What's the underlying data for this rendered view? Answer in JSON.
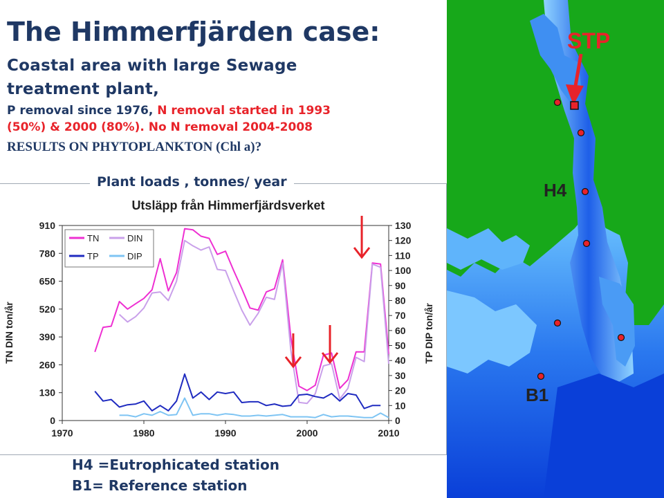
{
  "slide": {
    "title": "The Himmerfjärden case:",
    "subtitle_line1": "Coastal area with large Sewage",
    "subtitle_line2": "treatment plant,",
    "line3_a": "P removal since 1976, ",
    "line3_b": "N removal started in 1993",
    "line4": "(50%) & 2000 (80%).  No N removal 2004-2008",
    "results": "RESULTS ON PHYTOPLANKTON (Chl a)?",
    "loads_label": "Plant loads , tonnes/ year",
    "footer_h4": "H4 =Eutrophicated station",
    "footer_b1": "B1= Reference station"
  },
  "map": {
    "stp_label": "STP",
    "h4_label": "H4",
    "b1_label": "B1",
    "colors": {
      "land": "#17a81a",
      "water_deep": "#0a3fd8",
      "water_light": "#8fd3ff",
      "station": "#e8232a"
    }
  },
  "chart_data": {
    "type": "line",
    "title": "Utsläpp från Himmerfjärdsverket",
    "ylabel": "TN DIN  ton/år",
    "y2label": "TP DIP ton/år",
    "xlim": [
      1970,
      2010
    ],
    "ylim": [
      0,
      910
    ],
    "y2lim": [
      0,
      130
    ],
    "x_ticks": [
      1970,
      1980,
      1990,
      2000,
      2010
    ],
    "y_ticks": [
      0,
      130,
      260,
      390,
      520,
      650,
      780,
      910
    ],
    "y2_ticks": [
      0,
      10,
      20,
      30,
      40,
      50,
      60,
      70,
      80,
      90,
      100,
      110,
      120,
      130
    ],
    "legend_position": "top-left",
    "series": [
      {
        "name": "TN",
        "axis": "left",
        "color": "#ee2fd2",
        "width": 2,
        "points": [
          [
            1974,
            320
          ],
          [
            1975,
            435
          ],
          [
            1976,
            440
          ],
          [
            1977,
            555
          ],
          [
            1978,
            520
          ],
          [
            1979,
            545
          ],
          [
            1980,
            570
          ],
          [
            1981,
            610
          ],
          [
            1982,
            755
          ],
          [
            1983,
            605
          ],
          [
            1984,
            690
          ],
          [
            1985,
            895
          ],
          [
            1986,
            890
          ],
          [
            1987,
            860
          ],
          [
            1988,
            850
          ],
          [
            1989,
            775
          ],
          [
            1990,
            790
          ],
          [
            1991,
            700
          ],
          [
            1992,
            615
          ],
          [
            1993,
            525
          ],
          [
            1994,
            515
          ],
          [
            1995,
            600
          ],
          [
            1996,
            615
          ],
          [
            1997,
            750
          ],
          [
            1998,
            390
          ],
          [
            1999,
            160
          ],
          [
            2000,
            140
          ],
          [
            2001,
            165
          ],
          [
            2002,
            305
          ],
          [
            2003,
            315
          ],
          [
            2004,
            150
          ],
          [
            2005,
            190
          ],
          [
            2006,
            320
          ],
          [
            2007,
            320
          ],
          [
            2008,
            735
          ],
          [
            2009,
            730
          ],
          [
            2010,
            310
          ]
        ]
      },
      {
        "name": "DIN",
        "axis": "left",
        "color": "#c9a0ea",
        "width": 2,
        "points": [
          [
            1977,
            495
          ],
          [
            1978,
            460
          ],
          [
            1979,
            485
          ],
          [
            1980,
            525
          ],
          [
            1981,
            595
          ],
          [
            1982,
            600
          ],
          [
            1983,
            560
          ],
          [
            1984,
            650
          ],
          [
            1985,
            840
          ],
          [
            1986,
            815
          ],
          [
            1987,
            795
          ],
          [
            1988,
            810
          ],
          [
            1989,
            705
          ],
          [
            1990,
            700
          ],
          [
            1991,
            605
          ],
          [
            1992,
            515
          ],
          [
            1993,
            445
          ],
          [
            1994,
            500
          ],
          [
            1995,
            575
          ],
          [
            1996,
            565
          ],
          [
            1997,
            735
          ],
          [
            1998,
            330
          ],
          [
            1999,
            85
          ],
          [
            2000,
            80
          ],
          [
            2001,
            125
          ],
          [
            2002,
            255
          ],
          [
            2003,
            265
          ],
          [
            2004,
            100
          ],
          [
            2005,
            150
          ],
          [
            2006,
            295
          ],
          [
            2007,
            275
          ],
          [
            2008,
            730
          ],
          [
            2009,
            715
          ],
          [
            2010,
            265
          ]
        ]
      },
      {
        "name": "TP",
        "axis": "right",
        "color": "#1f2bc0",
        "width": 2,
        "points": [
          [
            1974,
            19.5
          ],
          [
            1975,
            13
          ],
          [
            1976,
            14
          ],
          [
            1977,
            9
          ],
          [
            1978,
            10.5
          ],
          [
            1979,
            11
          ],
          [
            1980,
            13
          ],
          [
            1981,
            6.5
          ],
          [
            1982,
            10
          ],
          [
            1983,
            6.5
          ],
          [
            1984,
            13
          ],
          [
            1985,
            31
          ],
          [
            1986,
            15
          ],
          [
            1987,
            19
          ],
          [
            1988,
            14
          ],
          [
            1989,
            19
          ],
          [
            1990,
            18
          ],
          [
            1991,
            19
          ],
          [
            1992,
            12
          ],
          [
            1993,
            12.5
          ],
          [
            1994,
            12.5
          ],
          [
            1995,
            10
          ],
          [
            1996,
            11
          ],
          [
            1997,
            9.5
          ],
          [
            1998,
            10
          ],
          [
            1999,
            17
          ],
          [
            2000,
            17.5
          ],
          [
            2001,
            16
          ],
          [
            2002,
            15
          ],
          [
            2003,
            18
          ],
          [
            2004,
            13
          ],
          [
            2005,
            18
          ],
          [
            2006,
            17
          ],
          [
            2007,
            8
          ],
          [
            2008,
            10
          ],
          [
            2009,
            10
          ]
        ]
      },
      {
        "name": "DIP",
        "axis": "right",
        "color": "#7ec4f3",
        "width": 2,
        "points": [
          [
            1977,
            3.5
          ],
          [
            1978,
            3.5
          ],
          [
            1979,
            2.5
          ],
          [
            1980,
            4.5
          ],
          [
            1981,
            3.5
          ],
          [
            1982,
            6
          ],
          [
            1983,
            3.5
          ],
          [
            1984,
            4
          ],
          [
            1985,
            15
          ],
          [
            1986,
            3.5
          ],
          [
            1987,
            4.5
          ],
          [
            1988,
            4.5
          ],
          [
            1989,
            3.5
          ],
          [
            1990,
            4.5
          ],
          [
            1991,
            4
          ],
          [
            1992,
            3
          ],
          [
            1993,
            3
          ],
          [
            1994,
            3.5
          ],
          [
            1995,
            3
          ],
          [
            1996,
            3.5
          ],
          [
            1997,
            4
          ],
          [
            1998,
            2.5
          ],
          [
            1999,
            2.5
          ],
          [
            2000,
            2.5
          ],
          [
            2001,
            2
          ],
          [
            2002,
            4
          ],
          [
            2003,
            2.5
          ],
          [
            2004,
            3
          ],
          [
            2005,
            3
          ],
          [
            2006,
            2.5
          ],
          [
            2007,
            2
          ],
          [
            2008,
            2
          ],
          [
            2009,
            5
          ],
          [
            2010,
            2
          ]
        ]
      }
    ],
    "arrows_at_year": [
      1998.3,
      2002.8,
      2006.7
    ],
    "arrow_color": "#e8232a"
  }
}
